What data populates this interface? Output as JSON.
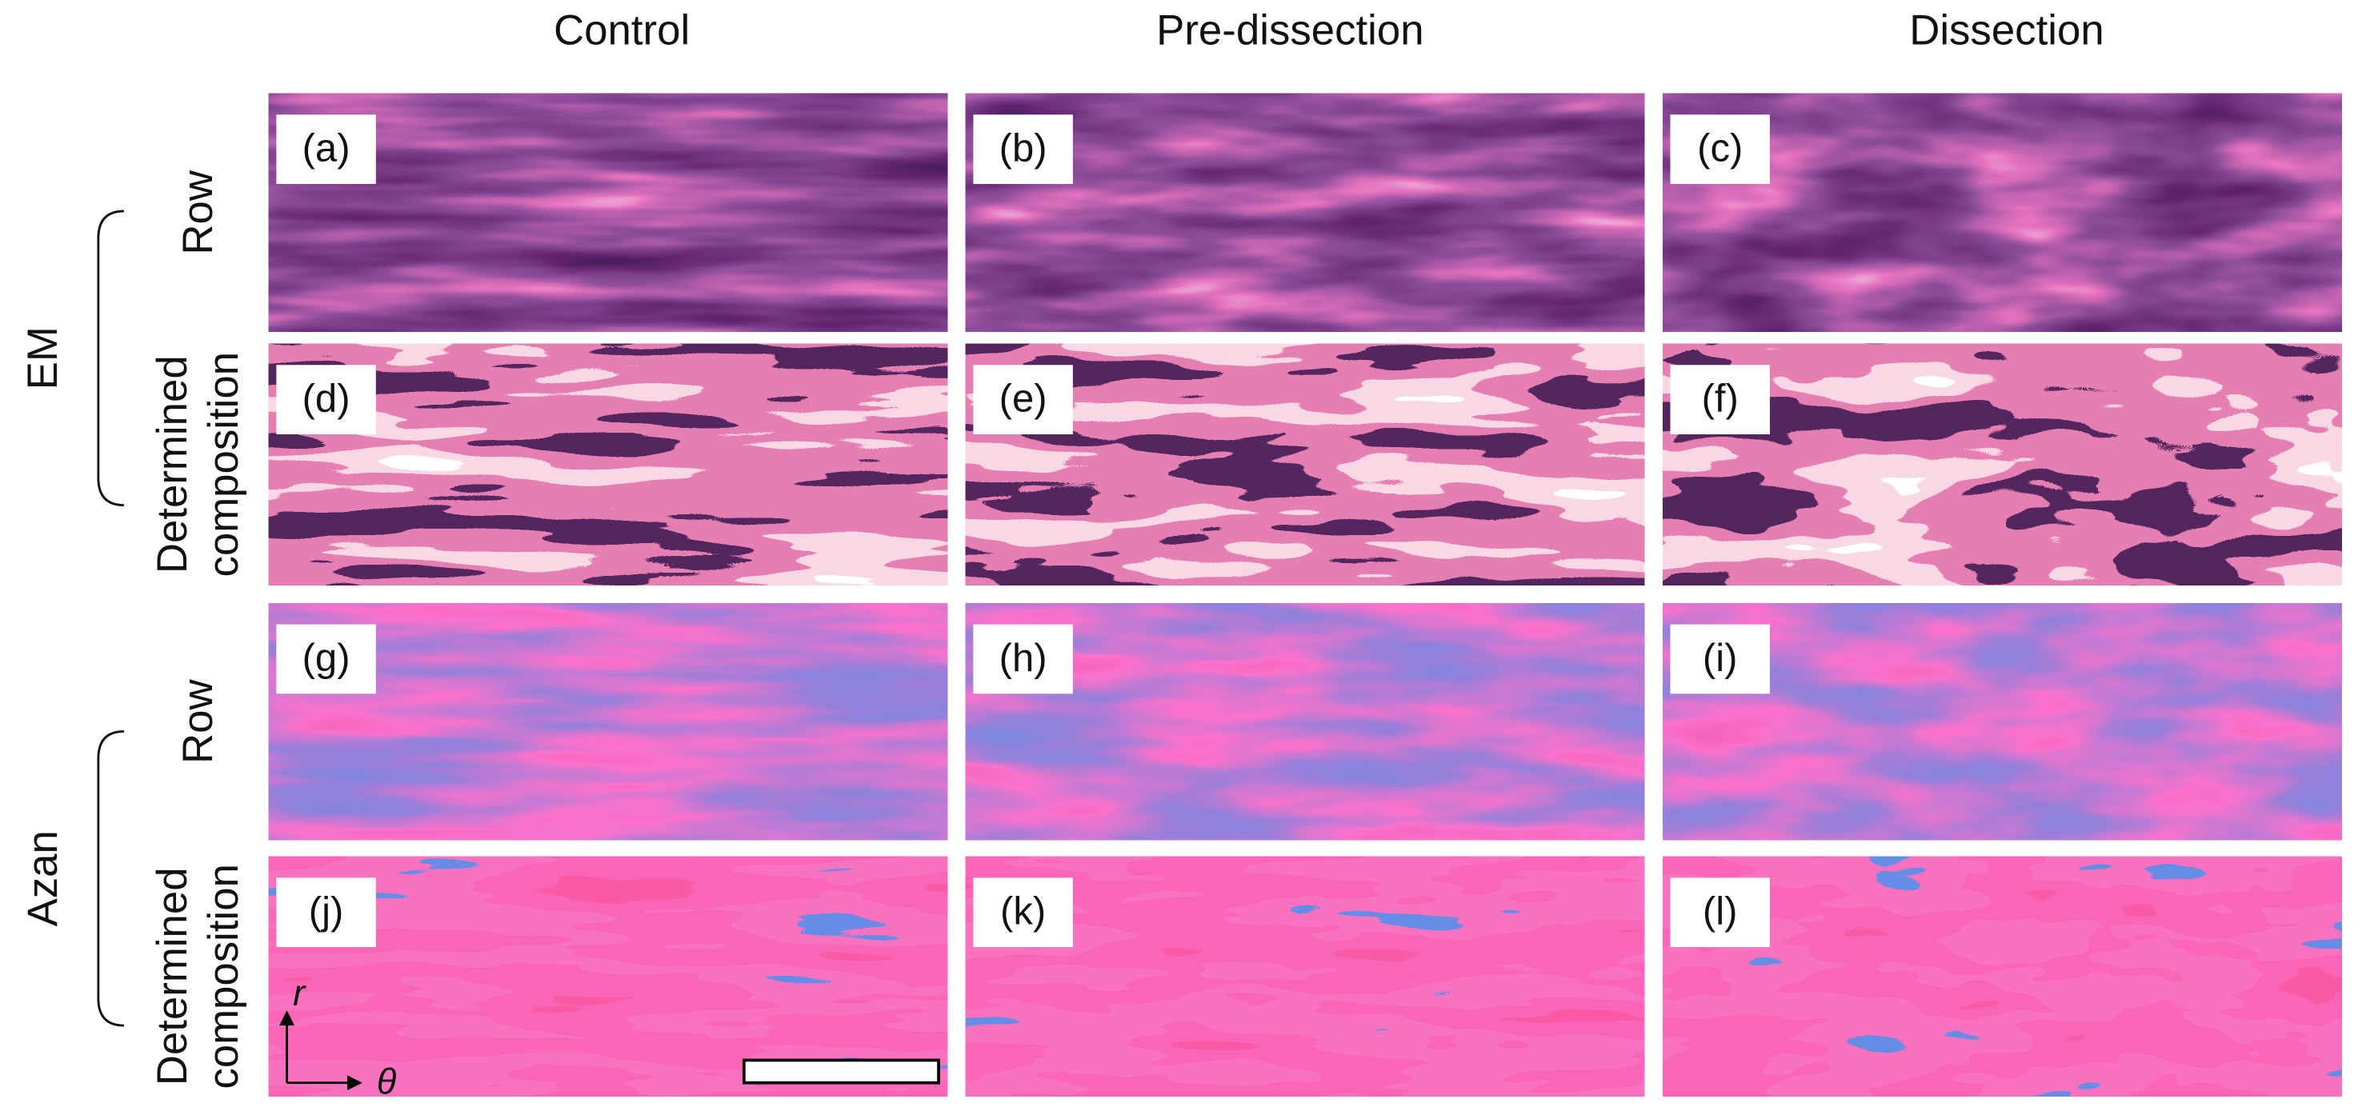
{
  "columns": [
    "Control",
    "Pre-dissection",
    "Dissection"
  ],
  "groups": [
    {
      "label": "EM",
      "rows": [
        {
          "lines": [
            "Row"
          ]
        },
        {
          "lines": [
            "Determined",
            "composition"
          ]
        }
      ]
    },
    {
      "label": "Azan",
      "rows": [
        {
          "lines": [
            "Row"
          ]
        },
        {
          "lines": [
            "Determined",
            "composition"
          ]
        }
      ]
    }
  ],
  "panels": [
    "(a)",
    "(b)",
    "(c)",
    "(d)",
    "(e)",
    "(f)",
    "(g)",
    "(h)",
    "(i)",
    "(j)",
    "(k)",
    "(l)"
  ],
  "axes": {
    "radial": "r",
    "circumferential": "θ"
  }
}
